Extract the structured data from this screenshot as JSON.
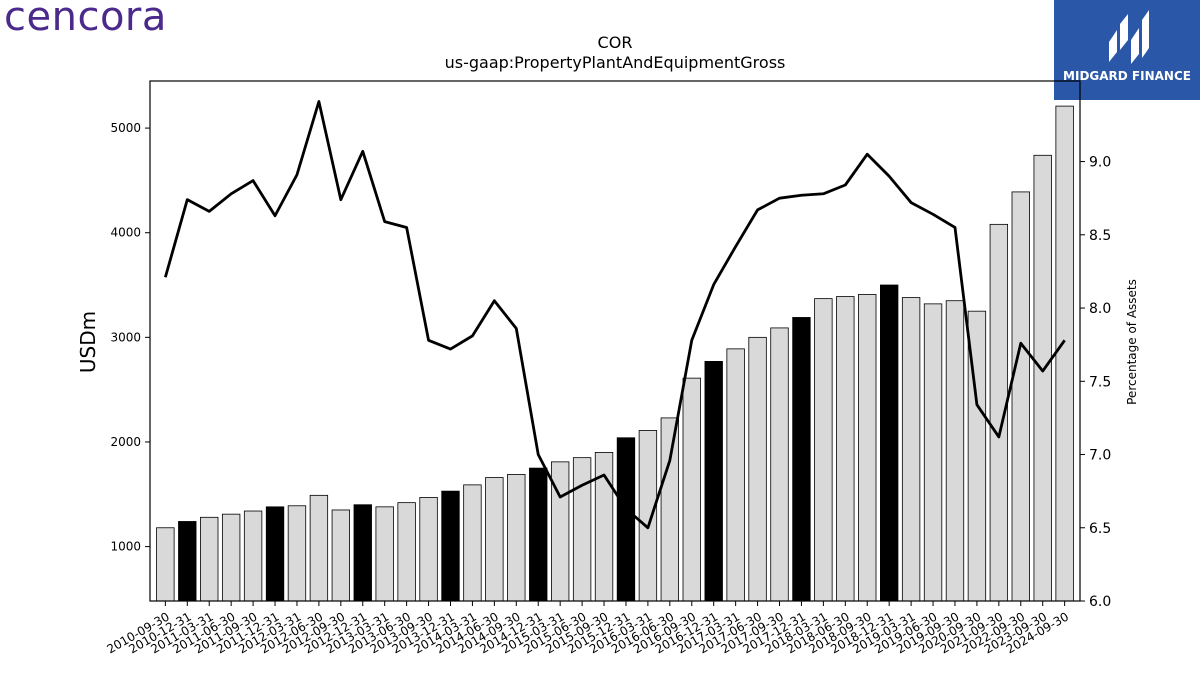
{
  "logos": {
    "left_text": "cencora",
    "right_text": "MIDGARD FINANCE"
  },
  "colors": {
    "bar_default": "#d9d9d9",
    "bar_highlight": "#000000",
    "line": "#000000",
    "logo_left": "#4b2a8c",
    "logo_right_bg": "#2a57a7"
  },
  "chart_data": {
    "type": "bar",
    "title": "COR",
    "subtitle": "us-gaap:PropertyPlantAndEquipmentGross",
    "ylabel": "USDm",
    "y2label": "Percentage of Assets",
    "ylim": [
      480,
      5450
    ],
    "y2lim": [
      6.0,
      9.55
    ],
    "yticks": [
      1000,
      2000,
      3000,
      4000,
      5000
    ],
    "y2ticks": [
      6.0,
      6.5,
      7.0,
      7.5,
      8.0,
      8.5,
      9.0
    ],
    "categories": [
      "2010-09-30",
      "2010-12-31",
      "2011-03-31",
      "2011-06-30",
      "2011-09-30",
      "2011-12-31",
      "2012-03-31",
      "2012-06-30",
      "2012-09-30",
      "2012-12-31",
      "2013-03-31",
      "2013-06-30",
      "2013-09-30",
      "2013-12-31",
      "2014-03-31",
      "2014-06-30",
      "2014-09-30",
      "2014-12-31",
      "2015-03-31",
      "2015-06-30",
      "2015-09-30",
      "2015-12-31",
      "2016-03-31",
      "2016-06-30",
      "2016-09-30",
      "2016-12-31",
      "2017-03-31",
      "2017-06-30",
      "2017-09-30",
      "2017-12-31",
      "2018-03-31",
      "2018-06-30",
      "2018-09-30",
      "2018-12-31",
      "2019-03-31",
      "2019-06-30",
      "2019-09-30",
      "2020-09-30",
      "2021-09-30",
      "2022-09-30",
      "2023-09-30",
      "2024-09-30"
    ],
    "series": [
      {
        "kind": "bar",
        "axis": "left",
        "values": [
          1180,
          1240,
          1280,
          1310,
          1340,
          1380,
          1390,
          1490,
          1350,
          1400,
          1380,
          1420,
          1470,
          1530,
          1590,
          1660,
          1690,
          1750,
          1810,
          1850,
          1900,
          2040,
          2110,
          2230,
          2610,
          2770,
          2890,
          3000,
          3090,
          3190,
          3370,
          3390,
          3410,
          3500,
          3380,
          3320,
          3350,
          3250,
          4080,
          4390,
          4740,
          5210
        ],
        "highlight": [
          false,
          true,
          false,
          false,
          false,
          true,
          false,
          false,
          false,
          true,
          false,
          false,
          false,
          true,
          false,
          false,
          false,
          true,
          false,
          false,
          false,
          true,
          false,
          false,
          false,
          true,
          false,
          false,
          false,
          true,
          false,
          false,
          false,
          true,
          false,
          false,
          false,
          false,
          false,
          false,
          false,
          false
        ]
      },
      {
        "kind": "line",
        "axis": "right",
        "values": [
          8.21,
          8.74,
          8.66,
          8.78,
          8.87,
          8.63,
          8.91,
          9.41,
          8.74,
          9.07,
          8.59,
          8.55,
          7.78,
          7.72,
          7.81,
          8.05,
          7.86,
          7.0,
          6.71,
          6.79,
          6.86,
          6.63,
          6.5,
          6.96,
          7.78,
          8.16,
          8.42,
          8.67,
          8.75,
          8.77,
          8.78,
          8.84,
          9.05,
          8.9,
          8.72,
          8.64,
          8.55,
          7.34,
          7.12,
          7.76,
          7.57,
          7.78
        ]
      }
    ]
  }
}
